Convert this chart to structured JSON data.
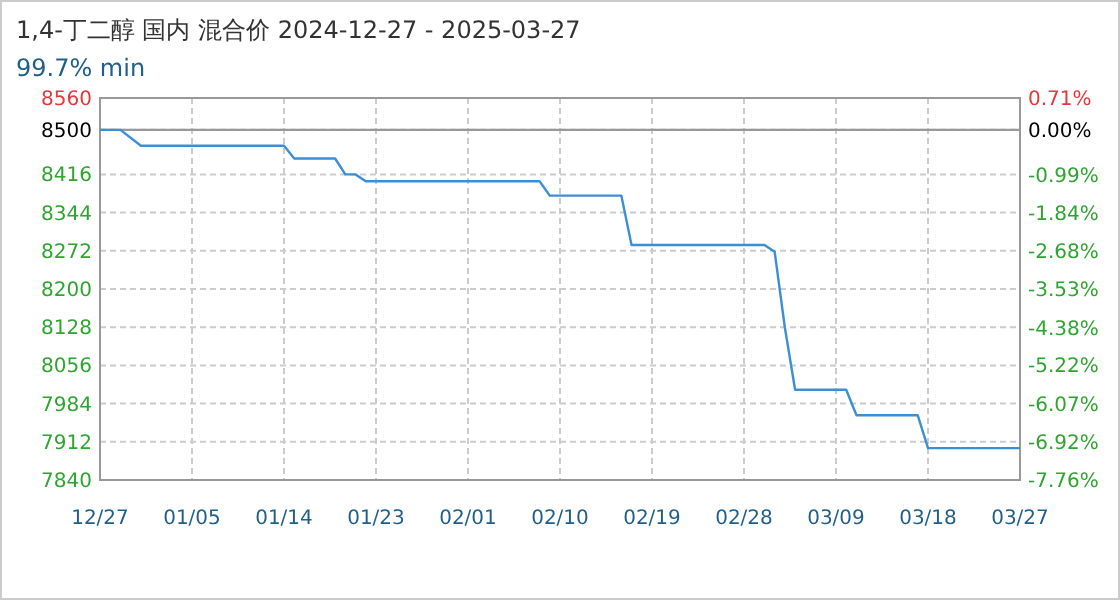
{
  "chart_data": {
    "type": "line",
    "title": "1,4-丁二醇 国内 混合价 2024-12-27 - 2025-03-27",
    "subtitle": "99.7% min",
    "x": [
      "2024-12-27",
      "2024-12-29",
      "2024-12-31",
      "2025-01-14",
      "2025-01-15",
      "2025-01-19",
      "2025-01-20",
      "2025-01-21",
      "2025-01-22",
      "2025-02-08",
      "2025-02-09",
      "2025-02-16",
      "2025-02-17",
      "2025-03-02",
      "2025-03-03",
      "2025-03-04",
      "2025-03-05",
      "2025-03-10",
      "2025-03-11",
      "2025-03-17",
      "2025-03-18",
      "2025-03-27"
    ],
    "series": [
      {
        "color": "#3a8fd6",
        "values": [
          8500,
          8500,
          8470,
          8470,
          8446,
          8446,
          8416,
          8416,
          8403,
          8403,
          8376,
          8376,
          8283,
          8283,
          8270,
          8127,
          8010,
          8010,
          7962,
          7962,
          7900,
          7900
        ]
      }
    ],
    "xlim": [
      "2024-12-27",
      "2025-03-27"
    ],
    "xticks": [
      {
        "value": "2024-12-27",
        "label": "12/27"
      },
      {
        "value": "2025-01-05",
        "label": "01/05"
      },
      {
        "value": "2025-01-14",
        "label": "01/14"
      },
      {
        "value": "2025-01-23",
        "label": "01/23"
      },
      {
        "value": "2025-02-01",
        "label": "02/01"
      },
      {
        "value": "2025-02-10",
        "label": "02/10"
      },
      {
        "value": "2025-02-19",
        "label": "02/19"
      },
      {
        "value": "2025-02-28",
        "label": "02/28"
      },
      {
        "value": "2025-03-09",
        "label": "03/09"
      },
      {
        "value": "2025-03-18",
        "label": "03/18"
      },
      {
        "value": "2025-03-27",
        "label": "03/27"
      }
    ],
    "ylim": [
      7840,
      8560
    ],
    "yticks": [
      7840,
      7912,
      7984,
      8056,
      8128,
      8200,
      8272,
      8344,
      8416,
      8500,
      8560
    ],
    "y2lim": [
      -7.76,
      0.71
    ],
    "y2ticks": [
      {
        "value": -7.76,
        "label": "-7.76%"
      },
      {
        "value": -6.92,
        "label": "-6.92%"
      },
      {
        "value": -6.07,
        "label": "-6.07%"
      },
      {
        "value": -5.22,
        "label": "-5.22%"
      },
      {
        "value": -4.38,
        "label": "-4.38%"
      },
      {
        "value": -3.53,
        "label": "-3.53%"
      },
      {
        "value": -2.68,
        "label": "-2.68%"
      },
      {
        "value": -1.84,
        "label": "-1.84%"
      },
      {
        "value": -0.99,
        "label": "-0.99%"
      },
      {
        "value": 0,
        "label": "0.00%"
      },
      {
        "value": 0.71,
        "label": "0.71%"
      }
    ],
    "ref_lines": [
      {
        "axis": "y",
        "value": 8500,
        "color": "#999999"
      }
    ],
    "grid": true
  }
}
